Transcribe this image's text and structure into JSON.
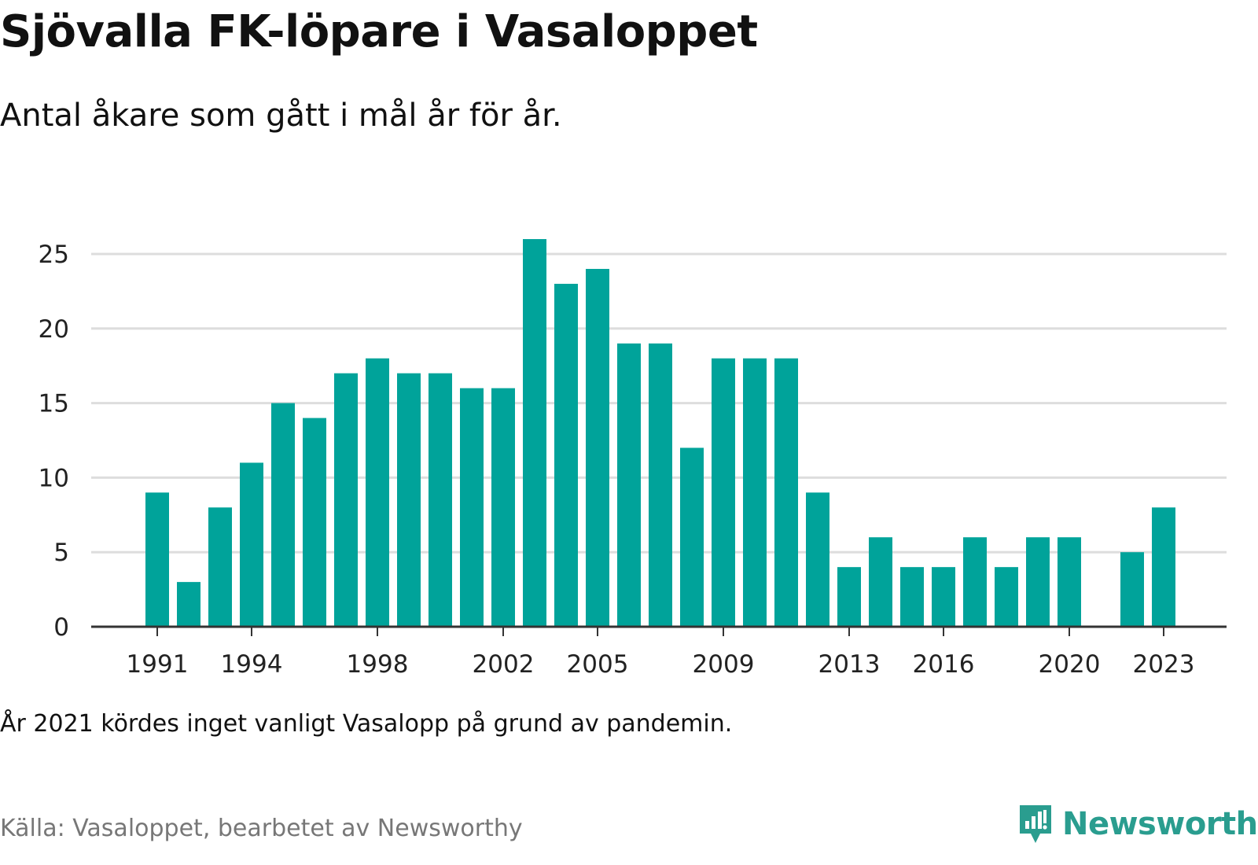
{
  "title": "Sjövalla FK-löpare i Vasaloppet",
  "subtitle": "Antal åkare som gått i mål år för år.",
  "note": "År 2021 kördes inget vanligt Vasalopp på grund av pandemin.",
  "source": "Källa: Vasaloppet, bearbetet av Newsworthy",
  "brand": {
    "name": "Newsworthy",
    "icon": "newsworthy-logo-icon",
    "color": "#2a9d8f"
  },
  "colors": {
    "bar": "#00a39a",
    "grid": "#dddddd",
    "axis": "#333333"
  },
  "chart_data": {
    "type": "bar",
    "title": "Sjövalla FK-löpare i Vasaloppet",
    "subtitle": "Antal åkare som gått i mål år för år.",
    "xlabel": "",
    "ylabel": "",
    "categories": [
      1991,
      1992,
      1993,
      1994,
      1995,
      1996,
      1997,
      1998,
      1999,
      2000,
      2001,
      2002,
      2003,
      2004,
      2005,
      2006,
      2007,
      2008,
      2009,
      2010,
      2011,
      2012,
      2013,
      2014,
      2015,
      2016,
      2017,
      2018,
      2019,
      2020,
      2021,
      2022,
      2023
    ],
    "values": [
      9,
      3,
      8,
      11,
      15,
      14,
      17,
      18,
      17,
      17,
      16,
      16,
      26,
      23,
      24,
      19,
      19,
      12,
      18,
      18,
      18,
      9,
      4,
      6,
      4,
      4,
      6,
      4,
      6,
      6,
      null,
      5,
      8
    ],
    "x_tick_labels": [
      "1991",
      "1994",
      "1998",
      "2002",
      "2005",
      "2009",
      "2013",
      "2016",
      "2020",
      "2023"
    ],
    "y_ticks": [
      0,
      5,
      10,
      15,
      20,
      25
    ],
    "ylim": [
      0,
      25
    ],
    "grid": true,
    "legend": "none"
  }
}
